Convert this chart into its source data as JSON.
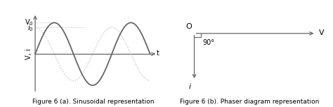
{
  "fig_width": 4.74,
  "fig_height": 1.53,
  "dpi": 100,
  "bg_color": "#ffffff",
  "sine_color": "#666666",
  "cosine_color": "#bbbbbb",
  "axis_color": "#666666",
  "caption_a": "Figure 6 (a). Sinusoidal representation",
  "caption_b": "Figure 6 (b). Phaser diagram representation",
  "caption_fontsize": 6.5,
  "label_fontsize": 7,
  "phasor_label_fontsize": 8,
  "V0_label": "V$_0$",
  "i0_label": "i$_0$",
  "t_label": "t",
  "Vi_label": "V, i",
  "O_label": "O",
  "angle_label": "90°",
  "phasor_V_label": "V",
  "phasor_i_label": "i"
}
